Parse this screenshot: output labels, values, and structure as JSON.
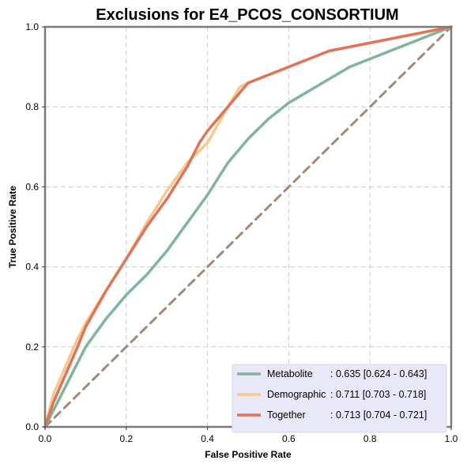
{
  "chart_data": {
    "type": "line",
    "title": "Exclusions for E4_PCOS_CONSORTIUM",
    "xlabel": "False Positive Rate",
    "ylabel": "True Positive Rate",
    "xlim": [
      0,
      1
    ],
    "ylim": [
      0,
      1
    ],
    "xticks": [
      "0.0",
      "0.2",
      "0.4",
      "0.6",
      "0.8",
      "1.0"
    ],
    "yticks": [
      "0.0",
      "0.2",
      "0.4",
      "0.6",
      "0.8",
      "1.0"
    ],
    "grid": true,
    "legend_position": "bottom-right",
    "series": [
      {
        "name": "Metabolite",
        "metric_label": ": 0.635 [0.624 - 0.643]",
        "color": "#7fb59b",
        "x": [
          0,
          0.02,
          0.05,
          0.08,
          0.1,
          0.15,
          0.2,
          0.25,
          0.3,
          0.35,
          0.4,
          0.45,
          0.5,
          0.55,
          0.6,
          0.65,
          0.7,
          0.75,
          0.8,
          0.85,
          0.9,
          0.95,
          1.0
        ],
        "y": [
          0,
          0.04,
          0.1,
          0.16,
          0.2,
          0.27,
          0.33,
          0.38,
          0.44,
          0.51,
          0.58,
          0.66,
          0.72,
          0.77,
          0.81,
          0.84,
          0.87,
          0.9,
          0.92,
          0.94,
          0.96,
          0.98,
          1.0
        ]
      },
      {
        "name": "Demographic",
        "metric_label": ": 0.711 [0.703 - 0.718]",
        "color": "#f5c88f",
        "x": [
          0,
          0.02,
          0.05,
          0.08,
          0.1,
          0.15,
          0.2,
          0.25,
          0.3,
          0.35,
          0.4,
          0.45,
          0.48,
          0.5,
          0.55,
          0.6,
          0.65,
          0.7,
          0.75,
          0.8,
          0.85,
          0.9,
          0.95,
          1.0
        ],
        "y": [
          0,
          0.08,
          0.15,
          0.22,
          0.26,
          0.34,
          0.42,
          0.51,
          0.59,
          0.66,
          0.71,
          0.8,
          0.85,
          0.86,
          0.88,
          0.9,
          0.92,
          0.94,
          0.95,
          0.96,
          0.97,
          0.98,
          0.99,
          1.0
        ]
      },
      {
        "name": "Together",
        "metric_label": ": 0.713 [0.704 - 0.721]",
        "color": "#e07458",
        "x": [
          0,
          0.02,
          0.05,
          0.08,
          0.1,
          0.15,
          0.2,
          0.25,
          0.3,
          0.35,
          0.38,
          0.4,
          0.45,
          0.5,
          0.55,
          0.6,
          0.65,
          0.7,
          0.75,
          0.8,
          0.85,
          0.9,
          0.95,
          1.0
        ],
        "y": [
          0,
          0.06,
          0.13,
          0.2,
          0.25,
          0.34,
          0.42,
          0.5,
          0.57,
          0.65,
          0.71,
          0.74,
          0.8,
          0.86,
          0.88,
          0.9,
          0.92,
          0.94,
          0.95,
          0.96,
          0.97,
          0.98,
          0.99,
          1.0
        ]
      },
      {
        "name": "",
        "style": "dashed",
        "color": "#a48877",
        "x": [
          0,
          1
        ],
        "y": [
          0,
          1
        ]
      }
    ]
  }
}
